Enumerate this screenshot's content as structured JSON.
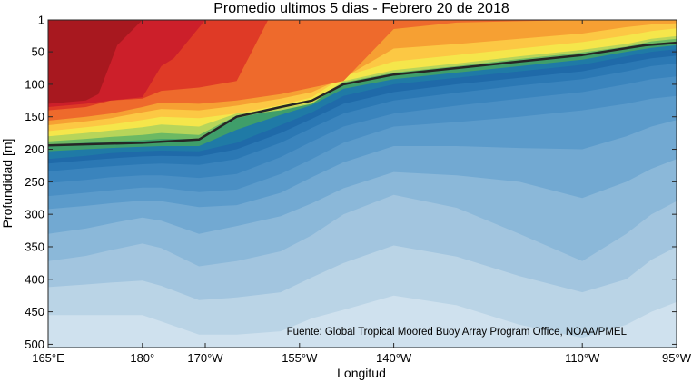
{
  "chart_data": {
    "type": "contour",
    "title": "Promedio ultimos 5 dias - Febrero 20 de 2018",
    "xlabel": "Longitud",
    "ylabel": "Profundidad [m]",
    "annotation": "Fuente: Global Tropical Moored Buoy Array Program Office, NOAA/PMEL",
    "xlim": [
      165,
      265
    ],
    "ylim": [
      505,
      1
    ],
    "x_ticks": [
      {
        "value": 165,
        "label": "165°E"
      },
      {
        "value": 180,
        "label": "180°"
      },
      {
        "value": 190,
        "label": "170°W"
      },
      {
        "value": 205,
        "label": "155°W"
      },
      {
        "value": 220,
        "label": "140°W"
      },
      {
        "value": 250,
        "label": "110°W"
      },
      {
        "value": 265,
        "label": "95°W"
      }
    ],
    "y_ticks": [
      1,
      50,
      100,
      150,
      200,
      250,
      300,
      350,
      400,
      450,
      500
    ],
    "thermocline_line": {
      "x": [
        165,
        180,
        189,
        195,
        202,
        207,
        212,
        220,
        230,
        240,
        250,
        260,
        265
      ],
      "y": [
        194,
        190,
        185,
        150,
        135,
        125,
        100,
        85,
        75,
        65,
        55,
        40,
        36
      ]
    },
    "layers": [
      {
        "color": "#a81c24",
        "top": [
          1,
          1,
          1,
          1,
          1,
          1,
          1,
          1,
          1,
          1,
          1,
          1,
          1
        ],
        "bot": [
          1,
          1,
          1,
          1,
          1,
          1,
          1,
          1,
          1,
          1,
          1,
          1,
          1
        ]
      },
      {
        "color": "#cc1f2a",
        "top": [
          150,
          145,
          150,
          150,
          150,
          150,
          150,
          150,
          150,
          150,
          150,
          150,
          150
        ],
        "bot": [
          150,
          145,
          150,
          150,
          150,
          150,
          150,
          150,
          150,
          150,
          150,
          150,
          150
        ]
      }
    ],
    "depth_profiles_x": [
      165,
      171,
      175,
      180,
      183,
      189,
      195,
      202,
      207,
      212,
      220,
      230,
      240,
      250,
      257,
      261,
      265
    ],
    "isolines_depth": [
      [
        156,
        150,
        145,
        135,
        128,
        130,
        125,
        115,
        105,
        95,
        15,
        5,
        3,
        1,
        1,
        1,
        1
      ],
      [
        163,
        157,
        152,
        143,
        138,
        140,
        133,
        122,
        112,
        90,
        45,
        38,
        30,
        22,
        12,
        8,
        6
      ],
      [
        172,
        166,
        162,
        155,
        150,
        152,
        145,
        132,
        120,
        88,
        65,
        55,
        45,
        35,
        25,
        18,
        14
      ],
      [
        180,
        175,
        171,
        166,
        162,
        165,
        145,
        137,
        128,
        95,
        78,
        68,
        57,
        47,
        38,
        30,
        26
      ],
      [
        188,
        184,
        181,
        178,
        175,
        178,
        148,
        140,
        130,
        97,
        82,
        72,
        61,
        51,
        42,
        34,
        30
      ],
      [
        193,
        190,
        188,
        186,
        184,
        184,
        152,
        138,
        124,
        100,
        85,
        75,
        65,
        55,
        45,
        38,
        35
      ],
      [
        203,
        200,
        198,
        196,
        195,
        195,
        170,
        147,
        132,
        107,
        92,
        82,
        72,
        62,
        50,
        44,
        40
      ],
      [
        215,
        210,
        206,
        203,
        202,
        203,
        190,
        163,
        143,
        118,
        100,
        90,
        80,
        70,
        57,
        50,
        46
      ],
      [
        222,
        217,
        214,
        211,
        210,
        211,
        200,
        175,
        153,
        130,
        112,
        100,
        90,
        80,
        67,
        60,
        56
      ],
      [
        234,
        229,
        226,
        223,
        222,
        224,
        215,
        190,
        167,
        145,
        125,
        113,
        102,
        92,
        80,
        72,
        68
      ],
      [
        252,
        247,
        243,
        240,
        240,
        244,
        238,
        212,
        188,
        165,
        145,
        133,
        122,
        112,
        100,
        92,
        88
      ],
      [
        272,
        267,
        263,
        259,
        259,
        266,
        262,
        238,
        215,
        190,
        165,
        158,
        150,
        140,
        130,
        122,
        118
      ],
      [
        292,
        287,
        283,
        279,
        280,
        289,
        286,
        267,
        243,
        220,
        195,
        195,
        198,
        200,
        180,
        165,
        155
      ],
      [
        330,
        322,
        314,
        305,
        310,
        330,
        318,
        303,
        283,
        260,
        235,
        240,
        250,
        275,
        250,
        230,
        215
      ],
      [
        372,
        364,
        355,
        345,
        352,
        380,
        372,
        357,
        332,
        300,
        270,
        290,
        330,
        372,
        330,
        300,
        280
      ],
      [
        412,
        408,
        405,
        402,
        410,
        432,
        428,
        420,
        397,
        375,
        348,
        365,
        395,
        420,
        400,
        370,
        350
      ],
      [
        455,
        455,
        455,
        455,
        465,
        485,
        485,
        480,
        460,
        447,
        425,
        440,
        470,
        490,
        470,
        450,
        435
      ]
    ],
    "fill_colors": [
      "#a8181f",
      "#c91d26",
      "#df3a26",
      "#ee6a2c",
      "#f6a033",
      "#fcc844",
      "#f5e64b",
      "#b7d55a",
      "#6cb963",
      "#3f9e6a",
      "#1f7aa6",
      "#1f6aa9",
      "#2b78b4",
      "#3a84bd",
      "#4a8fc4",
      "#5b9bcb",
      "#72a9d2",
      "#8bb8d9",
      "#a2c5df",
      "#bad4e6",
      "#cfe1ee"
    ]
  }
}
